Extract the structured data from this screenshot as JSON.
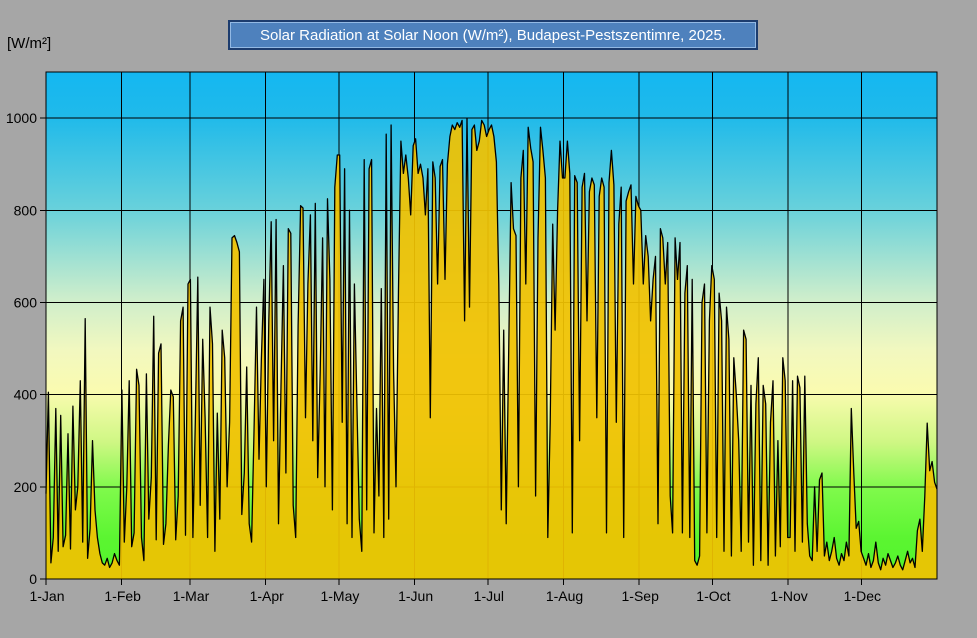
{
  "page": {
    "background": "#A6A6A6"
  },
  "header": {
    "title": "Solar Radiation at Solar Noon (W/m²), Budapest-Pestszentimre, 2025.",
    "title_bg": "#4E81BD",
    "title_border": "#1C3C6E",
    "title_text_color": "#FFFFFF"
  },
  "chart_data": {
    "type": "area",
    "title": "Solar Radiation at Solar Noon (W/m²), Budapest-Pestszentimre, 2025.",
    "ylabel": "[W/m²]",
    "xlabel": "",
    "ylim": [
      0,
      1100
    ],
    "grid": true,
    "legend": "none",
    "y_ticks": [
      0,
      200,
      400,
      600,
      800,
      1000
    ],
    "x_tick_labels": [
      "1-Jan",
      "1-Feb",
      "1-Mar",
      "1-Apr",
      "1-May",
      "1-Jun",
      "1-Jul",
      "1-Aug",
      "1-Sep",
      "1-Oct",
      "1-Nov",
      "1-Dec"
    ],
    "x_tick_days": [
      0,
      31,
      59,
      90,
      120,
      151,
      181,
      212,
      243,
      273,
      304,
      334
    ],
    "days_in_year": 365,
    "series_name": "Daily solar radiation at solar noon (W/m²)",
    "colors": {
      "area_fill": "#F0C202",
      "area_fill_opacity": 0.93,
      "data_line": "#000000",
      "gridline": "#000000",
      "axis": "#000000",
      "plot_bg_gradient": [
        [
          0.0,
          "#14B7F1"
        ],
        [
          0.09,
          "#20BAEA"
        ],
        [
          0.27,
          "#68D1DB"
        ],
        [
          0.45,
          "#CFEECB"
        ],
        [
          0.55,
          "#F2F8BF"
        ],
        [
          0.63,
          "#FAFBB0"
        ],
        [
          0.73,
          "#CFF784"
        ],
        [
          0.82,
          "#80FA4C"
        ],
        [
          0.92,
          "#5BF531"
        ],
        [
          1.0,
          "#52F42B"
        ]
      ]
    },
    "values": [
      185,
      405,
      35,
      90,
      370,
      60,
      355,
      70,
      95,
      315,
      65,
      375,
      150,
      200,
      430,
      80,
      565,
      45,
      110,
      300,
      150,
      90,
      55,
      35,
      30,
      45,
      25,
      35,
      55,
      40,
      30,
      410,
      80,
      200,
      430,
      70,
      100,
      455,
      420,
      90,
      40,
      445,
      130,
      220,
      570,
      85,
      490,
      510,
      75,
      120,
      290,
      410,
      395,
      85,
      180,
      560,
      590,
      95,
      640,
      650,
      90,
      340,
      655,
      160,
      520,
      350,
      90,
      590,
      510,
      60,
      360,
      130,
      540,
      480,
      200,
      340,
      740,
      745,
      730,
      710,
      140,
      230,
      460,
      120,
      80,
      330,
      590,
      260,
      480,
      650,
      200,
      560,
      775,
      300,
      780,
      120,
      420,
      680,
      230,
      760,
      750,
      160,
      90,
      550,
      810,
      805,
      350,
      640,
      790,
      300,
      815,
      220,
      450,
      740,
      200,
      825,
      650,
      150,
      850,
      920,
      920,
      340,
      890,
      120,
      800,
      90,
      640,
      380,
      130,
      60,
      910,
      150,
      890,
      910,
      100,
      370,
      180,
      630,
      90,
      965,
      130,
      985,
      450,
      200,
      630,
      950,
      880,
      920,
      870,
      790,
      940,
      955,
      880,
      900,
      870,
      790,
      890,
      350,
      905,
      870,
      640,
      895,
      910,
      650,
      900,
      960,
      985,
      975,
      990,
      980,
      995,
      560,
      1000,
      590,
      975,
      985,
      930,
      950,
      995,
      985,
      960,
      975,
      985,
      960,
      905,
      640,
      150,
      540,
      120,
      480,
      860,
      760,
      745,
      200,
      870,
      930,
      640,
      980,
      935,
      905,
      180,
      740,
      980,
      930,
      870,
      90,
      340,
      770,
      540,
      800,
      950,
      870,
      870,
      950,
      880,
      100,
      875,
      860,
      300,
      850,
      880,
      560,
      840,
      870,
      855,
      350,
      830,
      870,
      850,
      100,
      860,
      930,
      855,
      340,
      770,
      850,
      90,
      820,
      840,
      855,
      640,
      830,
      810,
      800,
      640,
      745,
      700,
      560,
      650,
      700,
      120,
      760,
      740,
      640,
      730,
      180,
      100,
      740,
      650,
      730,
      100,
      620,
      680,
      90,
      650,
      40,
      30,
      50,
      600,
      640,
      100,
      560,
      680,
      650,
      90,
      620,
      560,
      60,
      590,
      520,
      50,
      480,
      400,
      300,
      60,
      540,
      520,
      80,
      420,
      30,
      380,
      480,
      40,
      420,
      380,
      30,
      340,
      430,
      50,
      300,
      70,
      480,
      430,
      90,
      90,
      430,
      60,
      440,
      415,
      80,
      440,
      120,
      50,
      40,
      200,
      60,
      215,
      230,
      50,
      80,
      40,
      60,
      90,
      45,
      30,
      55,
      40,
      80,
      50,
      370,
      230,
      110,
      125,
      60,
      45,
      30,
      55,
      25,
      40,
      80,
      35,
      20,
      45,
      30,
      55,
      40,
      25,
      35,
      50,
      30,
      20,
      40,
      60,
      35,
      45,
      25,
      105,
      130,
      60,
      180,
      338,
      235,
      255,
      210,
      195
    ]
  }
}
